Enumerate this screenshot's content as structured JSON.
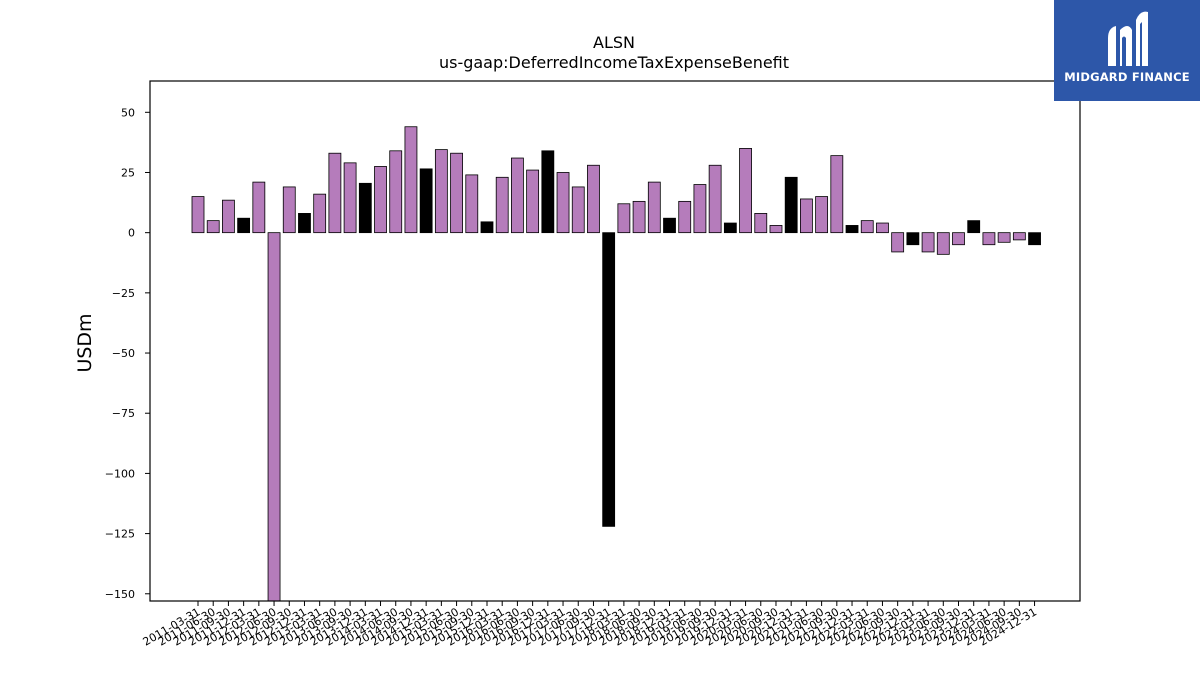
{
  "chart_data": {
    "type": "bar",
    "title": "ALSN",
    "subtitle": "us-gaap:DeferredIncomeTaxExpenseBenefit",
    "xlabel": "",
    "ylabel": "USDm",
    "ylim": [
      -153,
      63
    ],
    "yticks": [
      50,
      25,
      0,
      -25,
      -50,
      -75,
      -100,
      -125,
      -150
    ],
    "grid": false,
    "colors": {
      "quarter": "#b57cbb",
      "annual": "#000000"
    },
    "categories": [
      "2011-03-31",
      "2011-06-30",
      "2011-09-30",
      "2011-12-31",
      "2012-03-31",
      "2012-06-30",
      "2012-09-30",
      "2012-12-31",
      "2013-03-31",
      "2013-06-30",
      "2013-09-30",
      "2013-12-31",
      "2014-03-31",
      "2014-06-30",
      "2014-09-30",
      "2014-12-31",
      "2015-03-31",
      "2015-06-30",
      "2015-09-30",
      "2015-12-31",
      "2016-03-31",
      "2016-06-30",
      "2016-09-30",
      "2016-12-31",
      "2017-03-31",
      "2017-06-30",
      "2017-09-30",
      "2017-12-31",
      "2018-03-31",
      "2018-06-30",
      "2018-09-30",
      "2018-12-31",
      "2019-03-31",
      "2019-06-30",
      "2019-09-30",
      "2019-12-31",
      "2020-03-31",
      "2020-06-30",
      "2020-09-30",
      "2020-12-31",
      "2021-03-31",
      "2021-06-30",
      "2021-09-30",
      "2021-12-31",
      "2022-03-31",
      "2022-06-30",
      "2022-09-30",
      "2022-12-31",
      "2023-03-31",
      "2023-06-30",
      "2023-09-30",
      "2023-12-31",
      "2024-03-31",
      "2024-06-30",
      "2024-09-30",
      "2024-12-31"
    ],
    "values": [
      15,
      5,
      13.5,
      6,
      21,
      -153,
      19,
      8,
      16,
      33,
      29,
      20.5,
      27.5,
      34,
      44,
      26.5,
      34.5,
      33,
      24,
      4.5,
      23,
      31,
      26,
      34,
      25,
      19,
      28,
      -122,
      12,
      13,
      21,
      6,
      13,
      20,
      28,
      4,
      35,
      8,
      3,
      23,
      14,
      15,
      32,
      3,
      5,
      4,
      -8,
      -5,
      -8,
      -9,
      -5,
      5,
      -5,
      -4,
      -3,
      -5
    ],
    "annual": [
      false,
      false,
      false,
      true,
      false,
      false,
      false,
      true,
      false,
      false,
      false,
      true,
      false,
      false,
      false,
      true,
      false,
      false,
      false,
      true,
      false,
      false,
      false,
      true,
      false,
      false,
      false,
      true,
      false,
      false,
      false,
      true,
      false,
      false,
      false,
      true,
      false,
      false,
      false,
      true,
      false,
      false,
      false,
      true,
      false,
      false,
      false,
      true,
      false,
      false,
      false,
      true,
      false,
      false,
      false,
      true
    ]
  },
  "logo": {
    "text": "MIDGARD FINANCE"
  }
}
